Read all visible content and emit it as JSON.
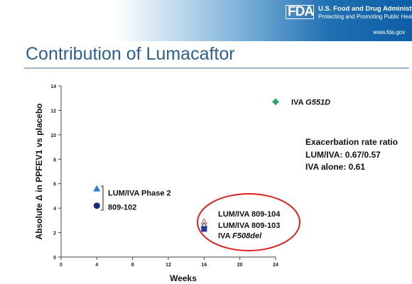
{
  "header": {
    "agency_name": "U.S. Food and Drug Administration",
    "tagline": "Protecting and Promoting Public Health",
    "url": "www.fda.gov",
    "logo_text": "FDA",
    "band_color": "#1f6fb2"
  },
  "slide": {
    "title": "Contribution of Lumacaftor",
    "exacerbation": {
      "heading": "Exacerbation rate ratio",
      "line1": "LUM/IVA: 0.67/0.57",
      "line2": "IVA alone: 0.61"
    }
  },
  "chart_data": {
    "type": "scatter",
    "xlabel": "Weeks",
    "ylabel": "Absolute Δ in PPFEV1 vs placebo",
    "xlim": [
      0,
      24
    ],
    "ylim": [
      0,
      14
    ],
    "xticks": [
      0,
      4,
      8,
      12,
      16,
      20,
      24
    ],
    "yticks": [
      0,
      2,
      4,
      6,
      8,
      10,
      12,
      14
    ],
    "grid": false,
    "points": [
      {
        "x": 24,
        "y": 12.7,
        "marker": "diamond",
        "color": "#2ea86a"
      },
      {
        "x": 4,
        "y": 5.6,
        "marker": "triangle",
        "color": "#2f7fd0"
      },
      {
        "x": 4,
        "y": 4.2,
        "marker": "circle",
        "color": "#1a2a7a"
      },
      {
        "x": 16,
        "y": 2.9,
        "marker": "triangle-outline",
        "color": "#d9534f"
      },
      {
        "x": 16,
        "y": 2.6,
        "marker": "triangle-outline",
        "color": "#3a3a3a"
      },
      {
        "x": 16,
        "y": 2.3,
        "marker": "square",
        "color": "#1f3aa0"
      }
    ],
    "annotations": [
      {
        "id": "iva-g551d",
        "parts": [
          {
            "text": "IVA ",
            "italic": false
          },
          {
            "text": "G551D",
            "italic": true
          }
        ],
        "x": 24,
        "y": 12.7
      },
      {
        "id": "phase2-a",
        "parts": [
          {
            "text": "LUM/IVA Phase 2",
            "italic": false
          }
        ],
        "x": 4,
        "y": 5.2
      },
      {
        "id": "phase2-b",
        "parts": [
          {
            "text": "809-102",
            "italic": false
          }
        ],
        "x": 4,
        "y": 4.2
      },
      {
        "id": "c104",
        "parts": [
          {
            "text": "LUM/IVA 809-104",
            "italic": false
          }
        ],
        "x": 16,
        "y": 3.5
      },
      {
        "id": "c103",
        "parts": [
          {
            "text": "LUM/IVA 809-103",
            "italic": false
          }
        ],
        "x": 16,
        "y": 2.6
      },
      {
        "id": "f508",
        "parts": [
          {
            "text": "IVA ",
            "italic": false
          },
          {
            "text": "F508del",
            "italic": true
          }
        ],
        "x": 16,
        "y": 1.7
      }
    ],
    "highlight_color": "#e0201e"
  }
}
